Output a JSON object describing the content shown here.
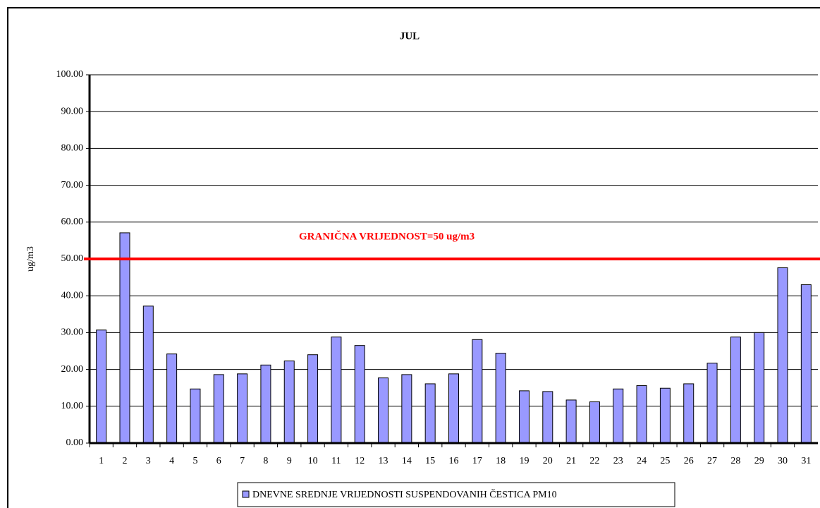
{
  "chart_data": {
    "type": "bar",
    "title": "JUL",
    "y_label": "ug/m3",
    "categories": [
      "1",
      "2",
      "3",
      "4",
      "5",
      "6",
      "7",
      "8",
      "9",
      "10",
      "11",
      "12",
      "13",
      "14",
      "15",
      "16",
      "17",
      "18",
      "19",
      "20",
      "21",
      "22",
      "23",
      "24",
      "25",
      "26",
      "27",
      "28",
      "29",
      "30",
      "31"
    ],
    "series": [
      {
        "name": "DNEVNE SREDNJE VRIJEDNOSTI SUSPENDOVANIH ČESTICA PM10",
        "color": "#9999ff",
        "values": [
          30.7,
          57.1,
          37.2,
          24.2,
          14.7,
          18.6,
          18.8,
          21.2,
          22.3,
          24.0,
          28.8,
          26.5,
          17.7,
          18.6,
          16.1,
          18.8,
          28.1,
          24.4,
          14.2,
          14.0,
          11.7,
          11.2,
          14.7,
          15.6,
          14.9,
          16.1,
          21.7,
          28.8,
          30.0,
          47.6,
          43.0
        ]
      }
    ],
    "ylim": [
      0,
      100
    ],
    "yticks": [
      {
        "value": 0,
        "label": "0.00"
      },
      {
        "value": 10,
        "label": "10.00"
      },
      {
        "value": 20,
        "label": "20.00"
      },
      {
        "value": 30,
        "label": "30.00"
      },
      {
        "value": 40,
        "label": "40.00"
      },
      {
        "value": 50,
        "label": "50.00"
      },
      {
        "value": 60,
        "label": "60.00"
      },
      {
        "value": 70,
        "label": "70.00"
      },
      {
        "value": 80,
        "label": "80.00"
      },
      {
        "value": 90,
        "label": "90.00"
      },
      {
        "value": 100,
        "label": "100.00"
      }
    ],
    "grid": true,
    "legend": "bottom",
    "reference_line": {
      "value": 50,
      "label": "GRANIČNA VRIJEDNOST=50 ug/m3",
      "color": "#ff0000"
    }
  }
}
